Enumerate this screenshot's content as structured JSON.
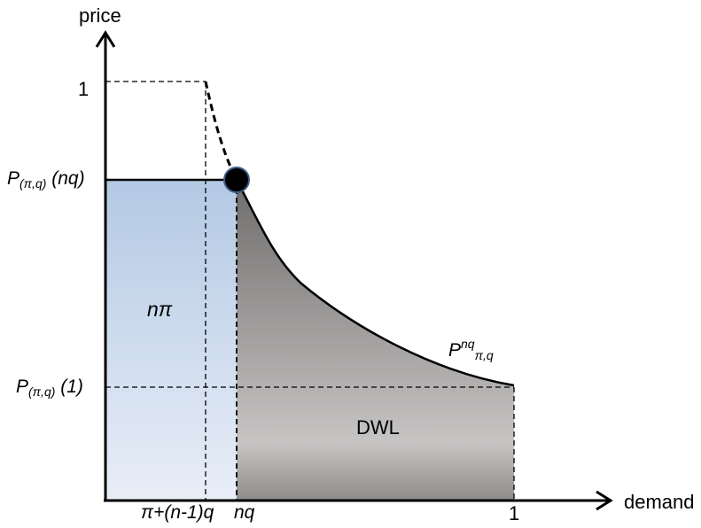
{
  "axes": {
    "y_label": "price",
    "x_label": "demand"
  },
  "y_ticks": {
    "one": "1",
    "p_nq": {
      "main": "P",
      "sub": "(π,q)",
      "arg": " (nq)"
    },
    "p_one": {
      "main": "P",
      "sub": "(π,q)",
      "arg": " (1)"
    }
  },
  "x_ticks": {
    "pi_nq": "π+(n-1)q",
    "nq": "nq",
    "one": "1"
  },
  "regions": {
    "blue_area": "nπ",
    "gray_area": "DWL"
  },
  "curve_label": {
    "main": "P",
    "sup": "nq",
    "sub": "π,q"
  },
  "colors": {
    "blue_top": "#b3c9e4",
    "blue_bottom": "#e9eef8",
    "gray_dark": "#6f6d6c",
    "gray_mid": "#a9a7a6",
    "gray_light": "#c6c5c4",
    "point_fill": "#000000",
    "point_stroke": "#3f5f8a"
  }
}
